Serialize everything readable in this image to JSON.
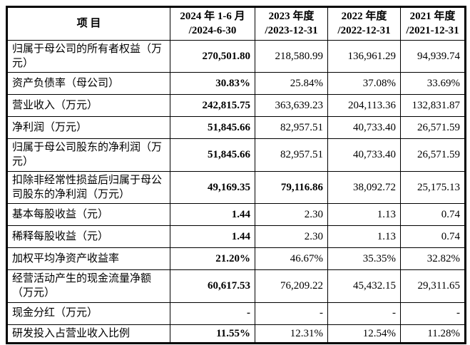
{
  "table": {
    "header": {
      "item_label": "项  目",
      "period_columns": [
        {
          "line1": "2024 年 1-6 月",
          "line2": "/2024-6-30"
        },
        {
          "line1": "2023 年度",
          "line2": "/2023-12-31"
        },
        {
          "line1": "2022 年度",
          "line2": "/2022-12-31"
        },
        {
          "line1": "2021 年度",
          "line2": "/2021-12-31"
        }
      ]
    },
    "rows": [
      {
        "label": "归属于母公司的所有者权益（万元）",
        "values": [
          "270,501.80",
          "218,580.99",
          "136,961.29",
          "94,939.74"
        ],
        "bold": [
          true,
          false,
          false,
          false
        ],
        "tall": true
      },
      {
        "label": "资产负债率（母公司）",
        "values": [
          "30.83%",
          "25.84%",
          "37.08%",
          "33.69%"
        ],
        "bold": [
          true,
          false,
          false,
          false
        ],
        "tall": false
      },
      {
        "label": "营业收入（万元）",
        "values": [
          "242,815.75",
          "363,639.23",
          "204,113.36",
          "132,831.87"
        ],
        "bold": [
          true,
          false,
          false,
          false
        ],
        "tall": false
      },
      {
        "label": "净利润（万元）",
        "values": [
          "51,845.66",
          "82,957.51",
          "40,733.40",
          "26,571.59"
        ],
        "bold": [
          true,
          false,
          false,
          false
        ],
        "tall": false
      },
      {
        "label": "归属于母公司股东的净利润（万元）",
        "values": [
          "51,845.66",
          "82,957.51",
          "40,733.40",
          "26,571.59"
        ],
        "bold": [
          true,
          false,
          false,
          false
        ],
        "tall": true
      },
      {
        "label": "扣除非经常性损益后归属于母公司股东的净利润（万元）",
        "values": [
          "49,169.35",
          "79,116.86",
          "38,092.72",
          "25,175.13"
        ],
        "bold": [
          true,
          true,
          false,
          false
        ],
        "tall": true
      },
      {
        "label": "基本每股收益（元）",
        "values": [
          "1.44",
          "2.30",
          "1.13",
          "0.74"
        ],
        "bold": [
          true,
          false,
          false,
          false
        ],
        "tall": false
      },
      {
        "label": "稀释每股收益（元）",
        "values": [
          "1.44",
          "2.30",
          "1.13",
          "0.74"
        ],
        "bold": [
          true,
          false,
          false,
          false
        ],
        "tall": false
      },
      {
        "label": "加权平均净资产收益率",
        "values": [
          "21.20%",
          "46.67%",
          "35.35%",
          "32.82%"
        ],
        "bold": [
          true,
          false,
          false,
          false
        ],
        "tall": false
      },
      {
        "label": "经营活动产生的现金流量净额（万元）",
        "values": [
          "60,617.53",
          "76,209.22",
          "45,432.15",
          "29,311.65"
        ],
        "bold": [
          true,
          false,
          false,
          false
        ],
        "tall": true
      },
      {
        "label": "现金分红（万元）",
        "values": [
          "-",
          "-",
          "-",
          "-"
        ],
        "bold": [
          true,
          false,
          false,
          false
        ],
        "tall": false
      },
      {
        "label": "研发投入占营业收入比例",
        "values": [
          "11.55%",
          "12.31%",
          "12.54%",
          "11.28%"
        ],
        "bold": [
          true,
          false,
          false,
          false
        ],
        "short": true
      }
    ]
  }
}
